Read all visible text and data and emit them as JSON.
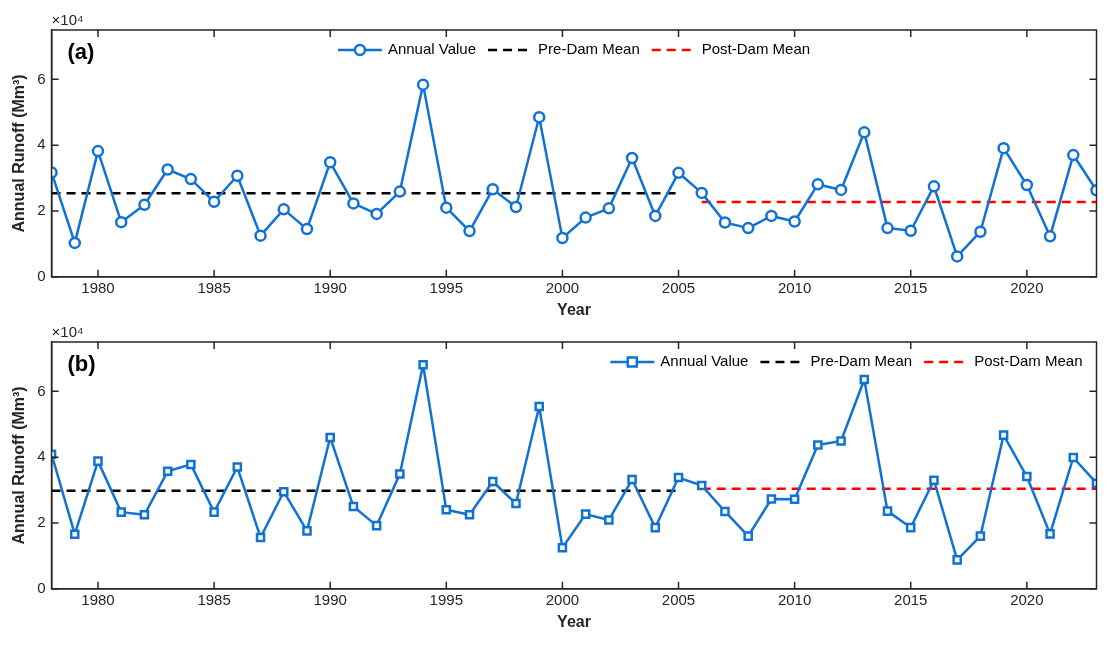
{
  "chart_data": [
    {
      "type": "line",
      "xlabel": "Year",
      "ylabel": "Annual Runoff (Mm³)",
      "annotations": [
        "×10⁴",
        "(a)"
      ],
      "xlim": [
        1978,
        2023
      ],
      "xticks": [
        1980,
        1985,
        1990,
        1995,
        2000,
        2005,
        2010,
        2015,
        2020
      ],
      "ylim": [
        0,
        7.5
      ],
      "yticks": [
        0,
        2,
        4,
        6
      ],
      "grid": false,
      "legend": "top",
      "x": [
        1978,
        1979,
        1980,
        1981,
        1982,
        1983,
        1984,
        1985,
        1986,
        1987,
        1988,
        1989,
        1990,
        1991,
        1992,
        1993,
        1994,
        1995,
        1996,
        1997,
        1998,
        1999,
        2000,
        2001,
        2002,
        2003,
        2004,
        2005,
        2006,
        2007,
        2008,
        2009,
        2010,
        2011,
        2012,
        2013,
        2014,
        2015,
        2016,
        2017,
        2018,
        2019,
        2020,
        2021,
        2022,
        2023
      ],
      "series": [
        {
          "name": "Annual Value",
          "color": "#0f72d4",
          "marker": "circle",
          "line_style": "solid",
          "values": [
            3.17,
            1.03,
            3.82,
            1.66,
            2.19,
            3.26,
            2.97,
            2.28,
            3.07,
            1.25,
            2.05,
            1.45,
            3.48,
            2.23,
            1.91,
            2.59,
            5.84,
            2.1,
            1.39,
            2.66,
            2.12,
            4.85,
            1.18,
            1.8,
            2.08,
            3.61,
            1.85,
            3.16,
            2.55,
            1.65,
            1.48,
            1.85,
            1.68,
            2.81,
            2.64,
            4.39,
            1.48,
            1.4,
            2.75,
            0.62,
            1.37,
            3.91,
            2.79,
            1.23,
            3.7,
            2.63
          ]
        },
        {
          "name": "Pre-Dam Mean",
          "color": "#000000",
          "marker": "none",
          "line_style": "dashed",
          "x": [
            1978,
            2005
          ],
          "values": [
            2.54,
            2.54
          ]
        },
        {
          "name": "Post-Dam Mean",
          "color": "#ff0000",
          "marker": "none",
          "line_style": "dashed",
          "x": [
            2006,
            2023
          ],
          "values": [
            2.27,
            2.27
          ]
        }
      ]
    },
    {
      "type": "line",
      "xlabel": "Year",
      "ylabel": "Annual Runoff (Mm³)",
      "annotations": [
        "×10⁴",
        "(b)"
      ],
      "xlim": [
        1978,
        2023
      ],
      "xticks": [
        1980,
        1985,
        1990,
        1995,
        2000,
        2005,
        2010,
        2015,
        2020
      ],
      "ylim": [
        0,
        7.5
      ],
      "yticks": [
        0,
        2,
        4,
        6
      ],
      "grid": false,
      "legend": "top right",
      "x": [
        1978,
        1979,
        1980,
        1981,
        1982,
        1983,
        1984,
        1985,
        1986,
        1987,
        1988,
        1989,
        1990,
        1991,
        1992,
        1993,
        1994,
        1995,
        1996,
        1997,
        1998,
        1999,
        2000,
        2001,
        2002,
        2003,
        2004,
        2005,
        2006,
        2007,
        2008,
        2009,
        2010,
        2011,
        2012,
        2013,
        2014,
        2015,
        2016,
        2017,
        2018,
        2019,
        2020,
        2021,
        2022,
        2023
      ],
      "series": [
        {
          "name": "Annual Value",
          "color": "#0f72d4",
          "marker": "square",
          "line_style": "solid",
          "values": [
            4.09,
            1.66,
            3.88,
            2.33,
            2.25,
            3.57,
            3.78,
            2.33,
            3.7,
            1.56,
            2.95,
            1.76,
            4.6,
            2.5,
            1.92,
            3.49,
            6.81,
            2.4,
            2.25,
            3.26,
            2.59,
            5.54,
            1.25,
            2.27,
            2.09,
            3.32,
            1.86,
            3.38,
            3.14,
            2.35,
            1.6,
            2.73,
            2.72,
            4.37,
            4.49,
            6.36,
            2.36,
            1.86,
            3.3,
            0.88,
            1.6,
            4.67,
            3.41,
            1.67,
            3.99,
            3.21
          ]
        },
        {
          "name": "Pre-Dam Mean",
          "color": "#000000",
          "marker": "none",
          "line_style": "dashed",
          "x": [
            1978,
            2005
          ],
          "values": [
            2.98,
            2.98
          ]
        },
        {
          "name": "Post-Dam Mean",
          "color": "#ff0000",
          "marker": "none",
          "line_style": "dashed",
          "x": [
            2006,
            2023
          ],
          "values": [
            3.04,
            3.04
          ]
        }
      ]
    }
  ]
}
